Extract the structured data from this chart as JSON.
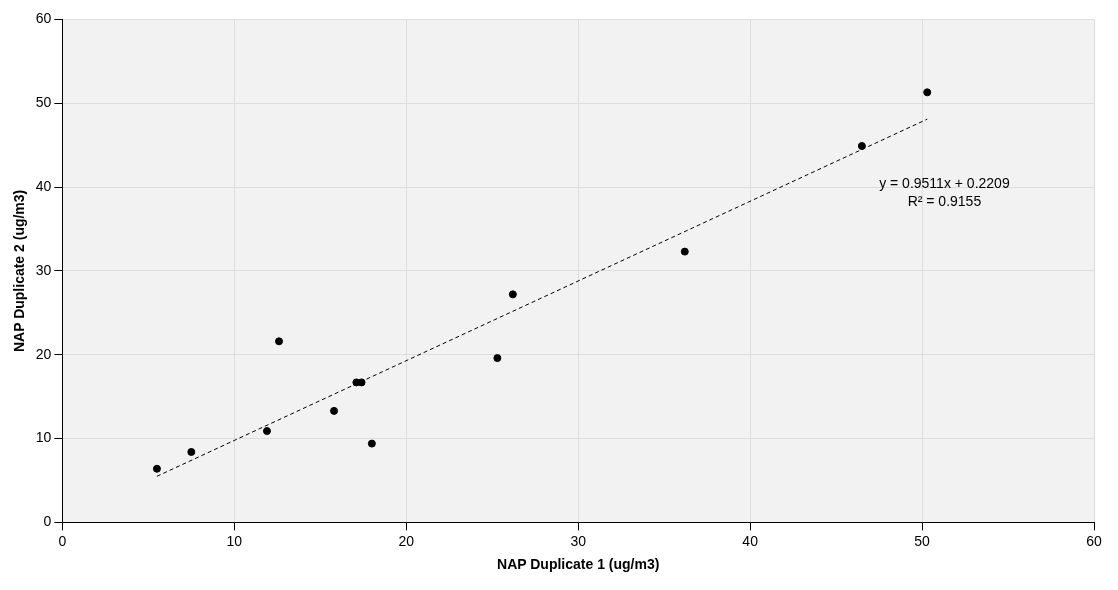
{
  "chart_data": {
    "type": "scatter",
    "xlabel": "NAP Duplicate 1 (ug/m3)",
    "ylabel": "NAP Duplicate 2 (ug/m3)",
    "xlim": [
      0,
      60
    ],
    "xticks": [
      0,
      10,
      20,
      30,
      40,
      50,
      60
    ],
    "ylim": [
      0,
      60
    ],
    "yticks": [
      0,
      10,
      20,
      30,
      40,
      50,
      60
    ],
    "grid": true,
    "legend": false,
    "marker": "circle",
    "series": [
      {
        "type": "scatter",
        "color": "#000000",
        "x": [
          5.5,
          7.5,
          11.9,
          12.6,
          15.8,
          17.1,
          17.4,
          18.0,
          25.3,
          26.2,
          36.2,
          46.5,
          50.3
        ],
        "values": [
          6.4,
          8.4,
          10.9,
          21.6,
          13.3,
          16.7,
          16.7,
          9.4,
          19.6,
          27.2,
          32.3,
          44.9,
          51.3
        ]
      },
      {
        "type": "line",
        "color": "#000000",
        "line_style": "dashed",
        "marker": "none",
        "x": [
          5.5,
          50.3
        ],
        "values": [
          5.5,
          48.1
        ]
      }
    ],
    "annotations": [
      "y = 0.9511x + 0.2209",
      "R² = 0.9155"
    ]
  }
}
